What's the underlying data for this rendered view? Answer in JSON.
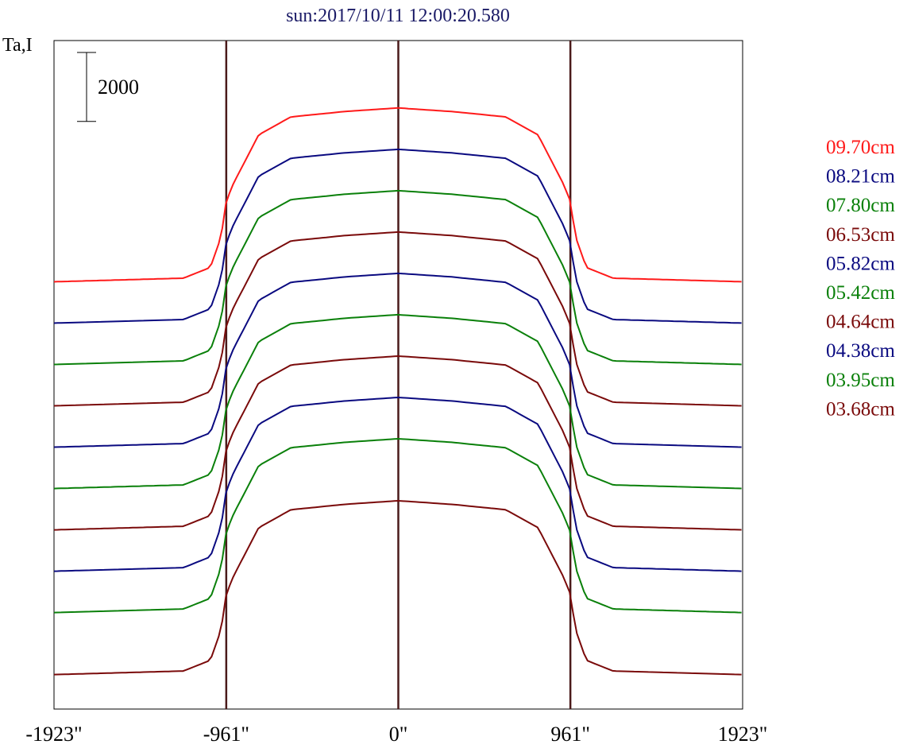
{
  "chart_data": {
    "type": "line",
    "title": "sun:2017/10/11 12:00:20.580",
    "ylabel": "Ta,I",
    "scale_bar_label": "2000",
    "scale_bar_value": 2000,
    "x_ticks": [
      {
        "value": -1923,
        "label": "-1923\""
      },
      {
        "value": -961,
        "label": "-961\""
      },
      {
        "value": 0,
        "label": "0\""
      },
      {
        "value": 961,
        "label": "961\""
      },
      {
        "value": 1923,
        "label": "1923\""
      }
    ],
    "xlim": [
      -1923,
      1923
    ],
    "ylim": [
      0,
      19400
    ],
    "vertical_markers": [
      -961,
      0,
      961
    ],
    "profile_shape": {
      "x": [
        -1923,
        -1200,
        -1050,
        -990,
        -961,
        -920,
        -780,
        -600,
        -300,
        0,
        300,
        600,
        780,
        920,
        961,
        990,
        1050,
        1200,
        1923
      ],
      "rel": [
        0,
        0.02,
        0.08,
        0.25,
        0.45,
        0.55,
        0.82,
        0.92,
        0.95,
        0.97,
        0.95,
        0.92,
        0.82,
        0.55,
        0.45,
        0.25,
        0.08,
        0.02,
        0
      ]
    },
    "series": [
      {
        "name": "09.70cm",
        "color": "#ff1a1a",
        "baseline": 12400,
        "amplitude": 5200
      },
      {
        "name": "08.21cm",
        "color": "#0a0a80",
        "baseline": 11200,
        "amplitude": 5200
      },
      {
        "name": "07.80cm",
        "color": "#0a800a",
        "baseline": 10000,
        "amplitude": 5200
      },
      {
        "name": "06.53cm",
        "color": "#7a0a0a",
        "baseline": 8800,
        "amplitude": 5200
      },
      {
        "name": "05.82cm",
        "color": "#0a0a80",
        "baseline": 7600,
        "amplitude": 5200
      },
      {
        "name": "05.42cm",
        "color": "#0a800a",
        "baseline": 6400,
        "amplitude": 5200
      },
      {
        "name": "04.64cm",
        "color": "#7a0a0a",
        "baseline": 5200,
        "amplitude": 5200
      },
      {
        "name": "04.38cm",
        "color": "#0a0a80",
        "baseline": 4000,
        "amplitude": 5200
      },
      {
        "name": "03.95cm",
        "color": "#0a800a",
        "baseline": 2800,
        "amplitude": 5200
      },
      {
        "name": "03.68cm",
        "color": "#7a0a0a",
        "baseline": 1000,
        "amplitude": 5200
      }
    ],
    "legend_placement": "right",
    "grid": false
  }
}
